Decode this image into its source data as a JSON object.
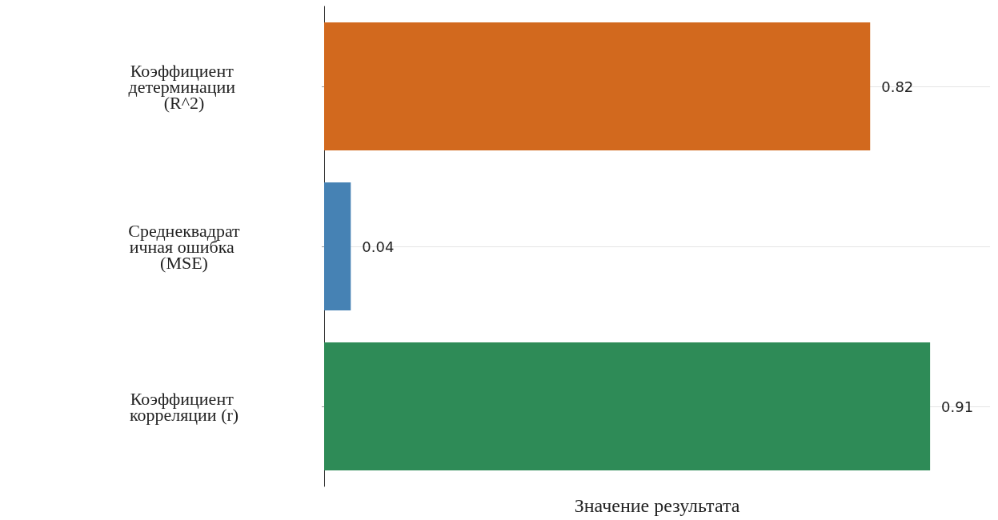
{
  "chart_data": {
    "type": "bar",
    "orientation": "horizontal",
    "xlabel": "Значение результата",
    "categories": [
      "Коэффициент детерминации (R^2)",
      "Среднеквадратичная ошибка (MSE)",
      "Коэффициент корреляции (r)"
    ],
    "values": [
      0.82,
      0.04,
      0.91
    ],
    "colors": [
      "#d2691e",
      "#4682b4",
      "#2e8b57"
    ],
    "data_labels": true,
    "grid": "y"
  }
}
